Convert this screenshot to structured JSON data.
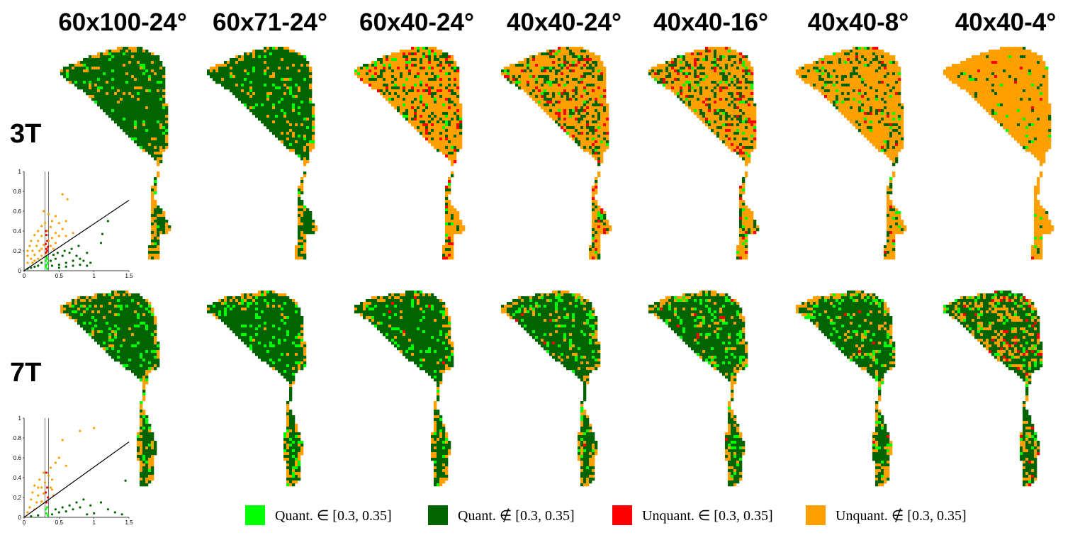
{
  "columns": [
    "60x100-24°",
    "60x71-24°",
    "60x40-24°",
    "40x40-24°",
    "40x40-16°",
    "40x40-8°",
    "40x40-4°"
  ],
  "rows": [
    "3T",
    "7T"
  ],
  "colors": {
    "quant_in": "#00ff00",
    "quant_out": "#006400",
    "unquant_in": "#ff0000",
    "unquant_out": "#ffa000"
  },
  "legend": [
    {
      "key": "quant_in",
      "label": "Quant. ∈ [0.3, 0.35]"
    },
    {
      "key": "quant_out",
      "label": "Quant. ∉ [0.3, 0.35]"
    },
    {
      "key": "unquant_in",
      "label": "Unquant. ∈ [0.3, 0.35]"
    },
    {
      "key": "unquant_out",
      "label": "Unquant. ∉ [0.3, 0.35]"
    }
  ],
  "composition": {
    "3T": [
      {
        "quant_in": 0.06,
        "quant_out": 0.88,
        "unquant_in": 0.0,
        "unquant_out": 0.06
      },
      {
        "quant_in": 0.06,
        "quant_out": 0.86,
        "unquant_in": 0.0,
        "unquant_out": 0.08
      },
      {
        "quant_in": 0.05,
        "quant_out": 0.2,
        "unquant_in": 0.08,
        "unquant_out": 0.67
      },
      {
        "quant_in": 0.04,
        "quant_out": 0.18,
        "unquant_in": 0.09,
        "unquant_out": 0.69
      },
      {
        "quant_in": 0.05,
        "quant_out": 0.2,
        "unquant_in": 0.07,
        "unquant_out": 0.68
      },
      {
        "quant_in": 0.04,
        "quant_out": 0.15,
        "unquant_in": 0.03,
        "unquant_out": 0.78
      },
      {
        "quant_in": 0.02,
        "quant_out": 0.05,
        "unquant_in": 0.01,
        "unquant_out": 0.92
      }
    ],
    "7T": [
      {
        "quant_in": 0.12,
        "quant_out": 0.84,
        "unquant_in": 0.0,
        "unquant_out": 0.04
      },
      {
        "quant_in": 0.12,
        "quant_out": 0.84,
        "unquant_in": 0.0,
        "unquant_out": 0.04
      },
      {
        "quant_in": 0.12,
        "quant_out": 0.83,
        "unquant_in": 0.005,
        "unquant_out": 0.045
      },
      {
        "quant_in": 0.12,
        "quant_out": 0.81,
        "unquant_in": 0.01,
        "unquant_out": 0.06
      },
      {
        "quant_in": 0.13,
        "quant_out": 0.8,
        "unquant_in": 0.01,
        "unquant_out": 0.06
      },
      {
        "quant_in": 0.13,
        "quant_out": 0.73,
        "unquant_in": 0.01,
        "unquant_out": 0.13
      },
      {
        "quant_in": 0.1,
        "quant_out": 0.6,
        "unquant_in": 0.04,
        "unquant_out": 0.26
      }
    ]
  },
  "chart_data": [
    {
      "type": "scatter",
      "row": "3T",
      "xlim": [
        0,
        1.5
      ],
      "ylim": [
        0,
        1
      ],
      "xticks": [
        "0",
        "0.5",
        "1",
        "1.5"
      ],
      "yticks": [
        "0",
        "0.2",
        "0.4",
        "0.6",
        "0.8",
        "1"
      ],
      "vlines": [
        0.3,
        0.35
      ],
      "line": [
        [
          0,
          0.0
        ],
        [
          1.5,
          0.71
        ]
      ],
      "points": {
        "unquant_out": [
          [
            0.55,
            0.77
          ],
          [
            0.62,
            0.72
          ],
          [
            0.28,
            0.6
          ],
          [
            0.35,
            0.57
          ],
          [
            0.45,
            0.55
          ],
          [
            0.4,
            0.5
          ],
          [
            0.5,
            0.48
          ],
          [
            0.6,
            0.5
          ],
          [
            0.3,
            0.48
          ],
          [
            0.25,
            0.45
          ],
          [
            0.38,
            0.44
          ],
          [
            0.55,
            0.42
          ],
          [
            0.2,
            0.4
          ],
          [
            0.33,
            0.4
          ],
          [
            0.45,
            0.38
          ],
          [
            0.15,
            0.36
          ],
          [
            0.25,
            0.35
          ],
          [
            0.4,
            0.33
          ],
          [
            0.5,
            0.35
          ],
          [
            0.1,
            0.3
          ],
          [
            0.2,
            0.3
          ],
          [
            0.35,
            0.3
          ],
          [
            0.08,
            0.25
          ],
          [
            0.18,
            0.25
          ],
          [
            0.28,
            0.26
          ],
          [
            0.05,
            0.2
          ],
          [
            0.12,
            0.2
          ],
          [
            0.22,
            0.2
          ],
          [
            0.05,
            0.15
          ],
          [
            0.15,
            0.16
          ],
          [
            0.25,
            0.15
          ],
          [
            0.1,
            0.12
          ],
          [
            0.2,
            0.12
          ],
          [
            0.05,
            0.08
          ],
          [
            0.12,
            0.08
          ],
          [
            0.25,
            0.22
          ],
          [
            0.38,
            0.25
          ],
          [
            0.45,
            0.28
          ],
          [
            0.6,
            0.35
          ],
          [
            0.7,
            0.38
          ],
          [
            0.32,
            0.18
          ],
          [
            0.42,
            0.22
          ],
          [
            0.15,
            0.1
          ]
        ],
        "unquant_in": [
          [
            0.31,
            0.4
          ],
          [
            0.32,
            0.36
          ],
          [
            0.33,
            0.3
          ],
          [
            0.31,
            0.27
          ],
          [
            0.34,
            0.24
          ],
          [
            0.32,
            0.22
          ],
          [
            0.33,
            0.2
          ],
          [
            0.31,
            0.18
          ]
        ],
        "quant_out": [
          [
            1.2,
            0.5
          ],
          [
            1.1,
            0.28
          ],
          [
            0.9,
            0.18
          ],
          [
            0.8,
            0.12
          ],
          [
            0.7,
            0.1
          ],
          [
            0.6,
            0.08
          ],
          [
            0.5,
            0.06
          ],
          [
            0.45,
            0.12
          ],
          [
            0.55,
            0.15
          ],
          [
            0.65,
            0.18
          ],
          [
            0.75,
            0.15
          ],
          [
            0.85,
            0.1
          ],
          [
            0.95,
            0.08
          ],
          [
            0.4,
            0.05
          ],
          [
            0.5,
            0.03
          ],
          [
            0.6,
            0.04
          ],
          [
            0.7,
            0.05
          ],
          [
            0.8,
            0.06
          ],
          [
            0.9,
            0.05
          ],
          [
            0.38,
            0.1
          ],
          [
            0.42,
            0.16
          ],
          [
            0.48,
            0.18
          ],
          [
            0.58,
            0.2
          ],
          [
            0.68,
            0.22
          ],
          [
            0.78,
            0.25
          ],
          [
            0.2,
            0.05
          ],
          [
            0.15,
            0.04
          ],
          [
            0.25,
            0.08
          ],
          [
            0.1,
            0.03
          ],
          [
            0.05,
            0.02
          ],
          [
            1.12,
            0.37
          ]
        ],
        "quant_in": [
          [
            0.31,
            0.1
          ],
          [
            0.32,
            0.06
          ],
          [
            0.33,
            0.12
          ],
          [
            0.31,
            0.04
          ],
          [
            0.34,
            0.08
          ],
          [
            0.32,
            0.14
          ],
          [
            0.33,
            0.02
          ]
        ]
      }
    },
    {
      "type": "scatter",
      "row": "7T",
      "xlim": [
        0,
        1.5
      ],
      "ylim": [
        0,
        1
      ],
      "xticks": [
        "0",
        "0.5",
        "1",
        "1.5"
      ],
      "yticks": [
        "0",
        "0.2",
        "0.4",
        "0.6",
        "0.8",
        "1"
      ],
      "vlines": [
        0.3,
        0.35
      ],
      "line": [
        [
          0,
          0.0
        ],
        [
          1.5,
          0.76
        ]
      ],
      "points": {
        "unquant_out": [
          [
            1.0,
            0.9
          ],
          [
            0.8,
            0.87
          ],
          [
            0.55,
            0.78
          ],
          [
            0.5,
            0.6
          ],
          [
            0.45,
            0.55
          ],
          [
            0.6,
            0.52
          ],
          [
            0.38,
            0.5
          ],
          [
            0.28,
            0.45
          ],
          [
            0.35,
            0.42
          ],
          [
            0.22,
            0.38
          ],
          [
            0.4,
            0.38
          ],
          [
            0.15,
            0.32
          ],
          [
            0.25,
            0.3
          ],
          [
            0.38,
            0.3
          ],
          [
            0.12,
            0.25
          ],
          [
            0.2,
            0.22
          ],
          [
            0.28,
            0.24
          ],
          [
            0.1,
            0.18
          ],
          [
            0.18,
            0.15
          ],
          [
            0.25,
            0.16
          ],
          [
            0.08,
            0.1
          ],
          [
            0.15,
            0.08
          ],
          [
            0.05,
            0.05
          ],
          [
            0.4,
            0.28
          ],
          [
            0.42,
            0.22
          ],
          [
            0.3,
            0.35
          ],
          [
            0.2,
            0.3
          ]
        ],
        "unquant_in": [
          [
            0.32,
            0.45
          ],
          [
            0.33,
            0.3
          ],
          [
            0.31,
            0.25
          ],
          [
            0.34,
            0.2
          ],
          [
            0.32,
            0.15
          ]
        ],
        "quant_out": [
          [
            1.45,
            0.37
          ],
          [
            1.1,
            0.15
          ],
          [
            0.95,
            0.12
          ],
          [
            0.8,
            0.1
          ],
          [
            0.7,
            0.08
          ],
          [
            0.6,
            0.06
          ],
          [
            0.5,
            0.05
          ],
          [
            0.45,
            0.08
          ],
          [
            0.55,
            0.1
          ],
          [
            0.65,
            0.12
          ],
          [
            1.2,
            0.08
          ],
          [
            1.3,
            0.05
          ],
          [
            1.4,
            0.03
          ],
          [
            1.0,
            0.04
          ],
          [
            0.9,
            0.03
          ],
          [
            0.4,
            0.03
          ],
          [
            0.2,
            0.02
          ],
          [
            0.1,
            0.01
          ],
          [
            0.75,
            0.15
          ],
          [
            0.85,
            0.18
          ]
        ],
        "quant_in": [
          [
            0.31,
            0.08
          ],
          [
            0.32,
            0.04
          ],
          [
            0.33,
            0.1
          ],
          [
            0.34,
            0.02
          ]
        ]
      }
    }
  ]
}
